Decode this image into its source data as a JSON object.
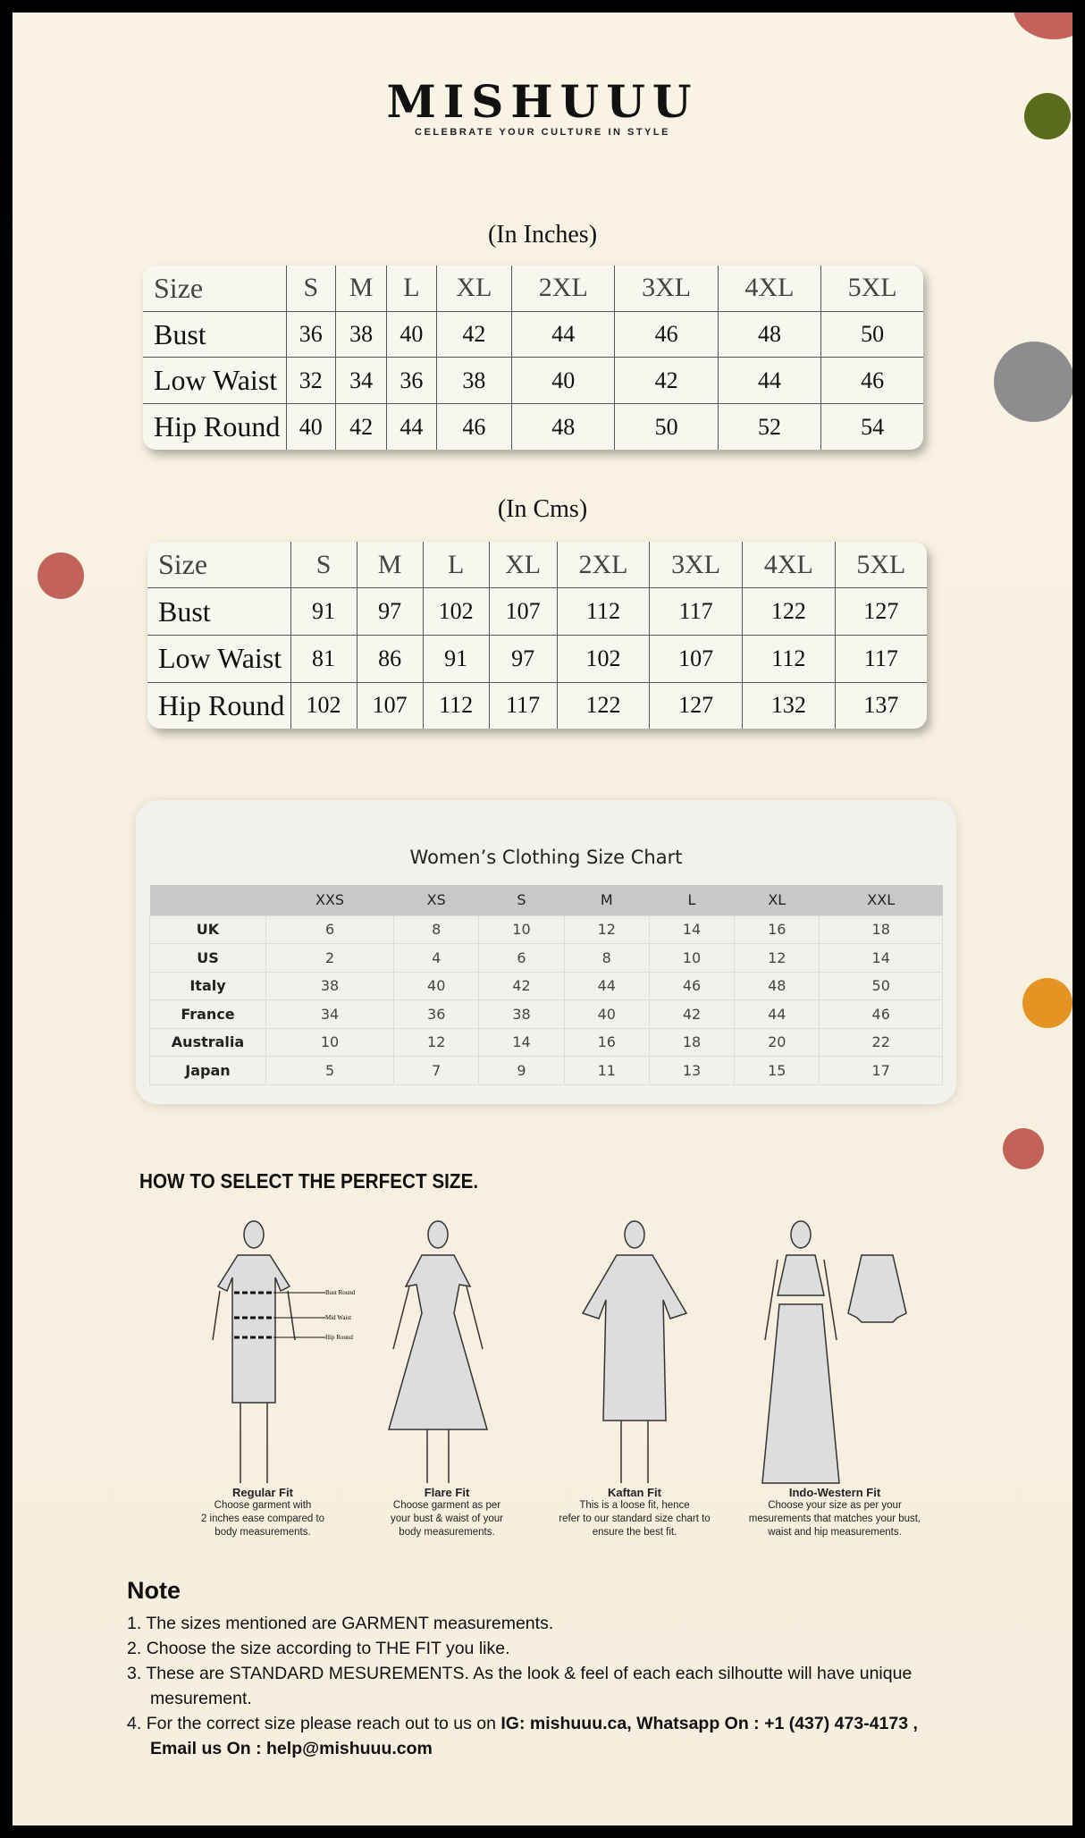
{
  "brand": {
    "name": "MISHUUU",
    "tagline": "CELEBRATE YOUR CULTURE IN STYLE"
  },
  "inches": {
    "caption": "(In Inches)",
    "header": [
      "Size",
      "S",
      "M",
      "L",
      "XL",
      "2XL",
      "3XL",
      "4XL",
      "5XL"
    ],
    "rows": [
      [
        "Bust",
        "36",
        "38",
        "40",
        "42",
        "44",
        "46",
        "48",
        "50"
      ],
      [
        "Low Waist",
        "32",
        "34",
        "36",
        "38",
        "40",
        "42",
        "44",
        "46"
      ],
      [
        "Hip Round",
        "40",
        "42",
        "44",
        "46",
        "48",
        "50",
        "52",
        "54"
      ]
    ]
  },
  "cms": {
    "caption": "(In Cms)",
    "header": [
      "Size",
      "S",
      "M",
      "L",
      "XL",
      "2XL",
      "3XL",
      "4XL",
      "5XL"
    ],
    "rows": [
      [
        "Bust",
        "91",
        "97",
        "102",
        "107",
        "112",
        "117",
        "122",
        "127"
      ],
      [
        "Low Waist",
        "81",
        "86",
        "91",
        "97",
        "102",
        "107",
        "112",
        "117"
      ],
      [
        "Hip Round",
        "102",
        "107",
        "112",
        "117",
        "122",
        "127",
        "132",
        "137"
      ]
    ]
  },
  "womens": {
    "title": "Women’s Clothing Size Chart",
    "header": [
      "",
      "XXS",
      "XS",
      "S",
      "M",
      "L",
      "XL",
      "XXL"
    ],
    "rows": [
      [
        "UK",
        "6",
        "8",
        "10",
        "12",
        "14",
        "16",
        "18"
      ],
      [
        "US",
        "2",
        "4",
        "6",
        "8",
        "10",
        "12",
        "14"
      ],
      [
        "Italy",
        "38",
        "40",
        "42",
        "44",
        "46",
        "48",
        "50"
      ],
      [
        "France",
        "34",
        "36",
        "38",
        "40",
        "42",
        "44",
        "46"
      ],
      [
        "Australia",
        "10",
        "12",
        "14",
        "16",
        "18",
        "20",
        "22"
      ],
      [
        "Japan",
        "5",
        "7",
        "9",
        "11",
        "13",
        "15",
        "17"
      ]
    ]
  },
  "how": {
    "title": "HOW TO SELECT THE PERFECT SIZE.",
    "labels": {
      "bust": "Bust Round",
      "waist": "Mid Waist",
      "hip": "Hip Round"
    },
    "fits": [
      {
        "name": "Regular Fit",
        "lines": [
          "Choose garment with",
          "2 inches ease compared to",
          "body measurements."
        ]
      },
      {
        "name": "Flare Fit",
        "lines": [
          "Choose garment as per",
          "your bust & waist of your",
          "body measurements."
        ]
      },
      {
        "name": "Kaftan Fit",
        "lines": [
          "This is a loose fit, hence",
          "refer to our standard size chart to",
          "ensure the best fit."
        ]
      },
      {
        "name": "Indo-Western Fit",
        "lines": [
          "Choose your size as per your",
          "mesurements that matches your bust,",
          "waist and hip measurements."
        ]
      }
    ]
  },
  "note": {
    "title": "Note",
    "items": [
      {
        "num": "1.",
        "text": "The sizes mentioned are GARMENT measurements."
      },
      {
        "num": "2.",
        "text": "Choose the size according to THE FIT you like."
      },
      {
        "num": "3.",
        "text": "These are STANDARD MESUREMENTS. As the look & feel of each each silhoutte will have unique mesurement."
      },
      {
        "num": "4.",
        "text": "For the correct size please reach out to us on ",
        "bold": "IG: mishuuu.ca, Whatsapp On : +1 (437) 473-4173 , Email us On : help@mishuuu.com"
      }
    ]
  }
}
